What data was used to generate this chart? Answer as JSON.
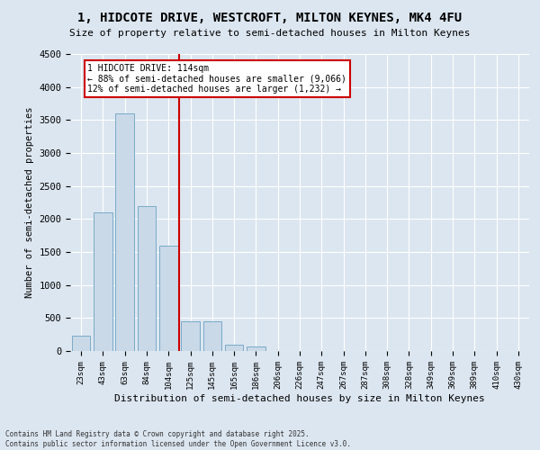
{
  "title": "1, HIDCOTE DRIVE, WESTCROFT, MILTON KEYNES, MK4 4FU",
  "subtitle": "Size of property relative to semi-detached houses in Milton Keynes",
  "xlabel": "Distribution of semi-detached houses by size in Milton Keynes",
  "ylabel": "Number of semi-detached properties",
  "categories": [
    "23sqm",
    "43sqm",
    "63sqm",
    "84sqm",
    "104sqm",
    "125sqm",
    "145sqm",
    "165sqm",
    "186sqm",
    "206sqm",
    "226sqm",
    "247sqm",
    "267sqm",
    "287sqm",
    "308sqm",
    "328sqm",
    "349sqm",
    "369sqm",
    "389sqm",
    "410sqm",
    "430sqm"
  ],
  "values": [
    230,
    2100,
    3600,
    2200,
    1600,
    450,
    450,
    100,
    70,
    0,
    0,
    0,
    0,
    0,
    0,
    0,
    0,
    0,
    0,
    0,
    0
  ],
  "bar_color": "#c9d9e8",
  "bar_edge_color": "#7aaac8",
  "background_color": "#dce6f0",
  "grid_color": "#ffffff",
  "fig_bg_color": "#dce6f0",
  "vline_x": 4.5,
  "vline_color": "#cc0000",
  "annotation_title": "1 HIDCOTE DRIVE: 114sqm",
  "annotation_line1": "← 88% of semi-detached houses are smaller (9,066)",
  "annotation_line2": "12% of semi-detached houses are larger (1,232) →",
  "annotation_box_color": "#cc0000",
  "ylim": [
    0,
    4500
  ],
  "yticks": [
    0,
    500,
    1000,
    1500,
    2000,
    2500,
    3000,
    3500,
    4000,
    4500
  ],
  "footer_line1": "Contains HM Land Registry data © Crown copyright and database right 2025.",
  "footer_line2": "Contains public sector information licensed under the Open Government Licence v3.0."
}
